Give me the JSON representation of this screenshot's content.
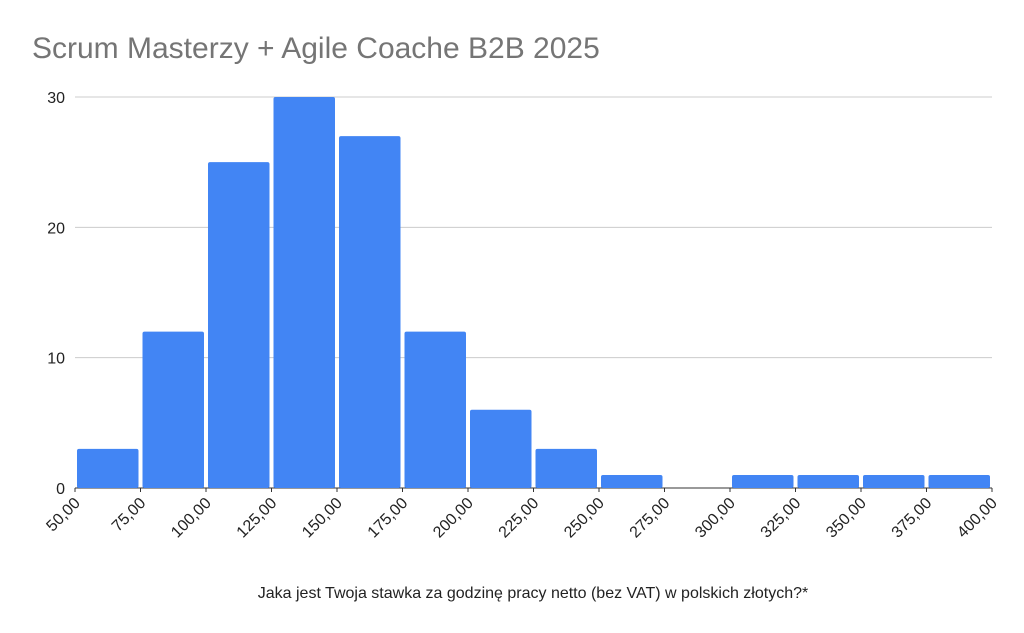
{
  "chart_data": {
    "type": "histogram",
    "title": "Scrum Masterzy + Agile Coache B2B 2025",
    "x_label": "Jaka jest Twoja stawka za godzinę pracy netto (bez VAT) w polskich złotych?*",
    "bins": [
      50,
      75,
      100,
      125,
      150,
      175,
      200,
      225,
      250,
      275,
      300,
      325,
      350,
      375,
      400
    ],
    "values": [
      3,
      12,
      25,
      30,
      27,
      12,
      6,
      3,
      1,
      0,
      1,
      1,
      1,
      1
    ],
    "color": "#4285f4",
    "xlim": [
      50,
      400
    ],
    "xticks": [
      {
        "value": 50,
        "label": "50,00"
      },
      {
        "value": 75,
        "label": "75,00"
      },
      {
        "value": 100,
        "label": "100,00"
      },
      {
        "value": 125,
        "label": "125,00"
      },
      {
        "value": 150,
        "label": "150,00"
      },
      {
        "value": 175,
        "label": "175,00"
      },
      {
        "value": 200,
        "label": "200,00"
      },
      {
        "value": 225,
        "label": "225,00"
      },
      {
        "value": 250,
        "label": "250,00"
      },
      {
        "value": 275,
        "label": "275,00"
      },
      {
        "value": 300,
        "label": "300,00"
      },
      {
        "value": 325,
        "label": "325,00"
      },
      {
        "value": 350,
        "label": "350,00"
      },
      {
        "value": 375,
        "label": "375,00"
      },
      {
        "value": 400,
        "label": "400,00"
      }
    ],
    "ylim": [
      0,
      30
    ],
    "yticks": [
      0,
      10,
      20,
      30
    ],
    "grid": true
  }
}
